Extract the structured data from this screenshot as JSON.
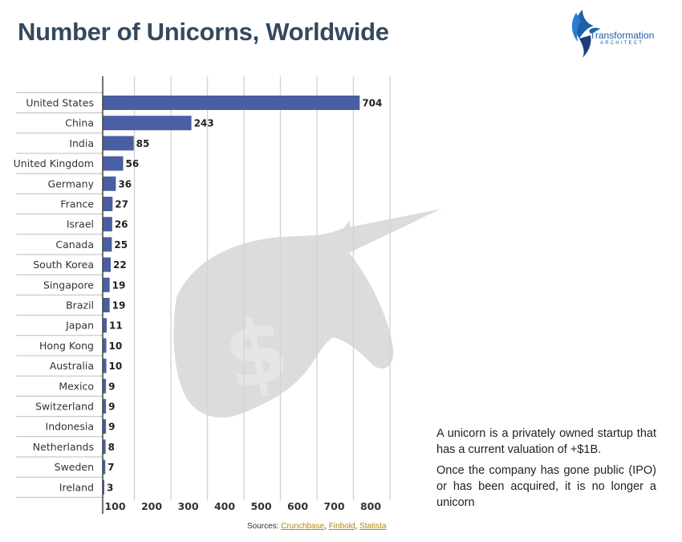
{
  "header": {
    "title": "Number of Unicorns, Worldwide"
  },
  "logo": {
    "name": "Transformation",
    "tagline": "ARCHITECT"
  },
  "notes": {
    "definition": "A unicorn is a privately owned startup that has a current valuation of +$1B.",
    "exit": "Once the company has gone public (IPO) or has been acquired, it is no longer a unicorn"
  },
  "sources": {
    "label": "Sources:",
    "links": [
      "Crunchbase",
      "Finbold",
      "Statista"
    ]
  },
  "colors": {
    "bar": "#4a5ea3",
    "grid": "#d4d4d4",
    "title": "#34495e",
    "watermark": "#dcdcdc"
  },
  "chart_data": {
    "type": "bar",
    "orientation": "horizontal",
    "title": "Number of Unicorns, Worldwide",
    "xlabel": "",
    "ylabel": "",
    "xlim": [
      0,
      800
    ],
    "xticks": [
      100,
      200,
      300,
      400,
      500,
      600,
      700,
      800
    ],
    "grid": true,
    "categories": [
      "United States",
      "China",
      "India",
      "United Kingdom",
      "Germany",
      "France",
      "Israel",
      "Canada",
      "South Korea",
      "Singapore",
      "Brazil",
      "Japan",
      "Hong Kong",
      "Australia",
      "Mexico",
      "Switzerland",
      "Indonesia",
      "Netherlands",
      "Sweden",
      "Ireland"
    ],
    "values": [
      704,
      243,
      85,
      56,
      36,
      27,
      26,
      25,
      22,
      19,
      19,
      11,
      10,
      10,
      9,
      9,
      9,
      8,
      7,
      3
    ]
  }
}
